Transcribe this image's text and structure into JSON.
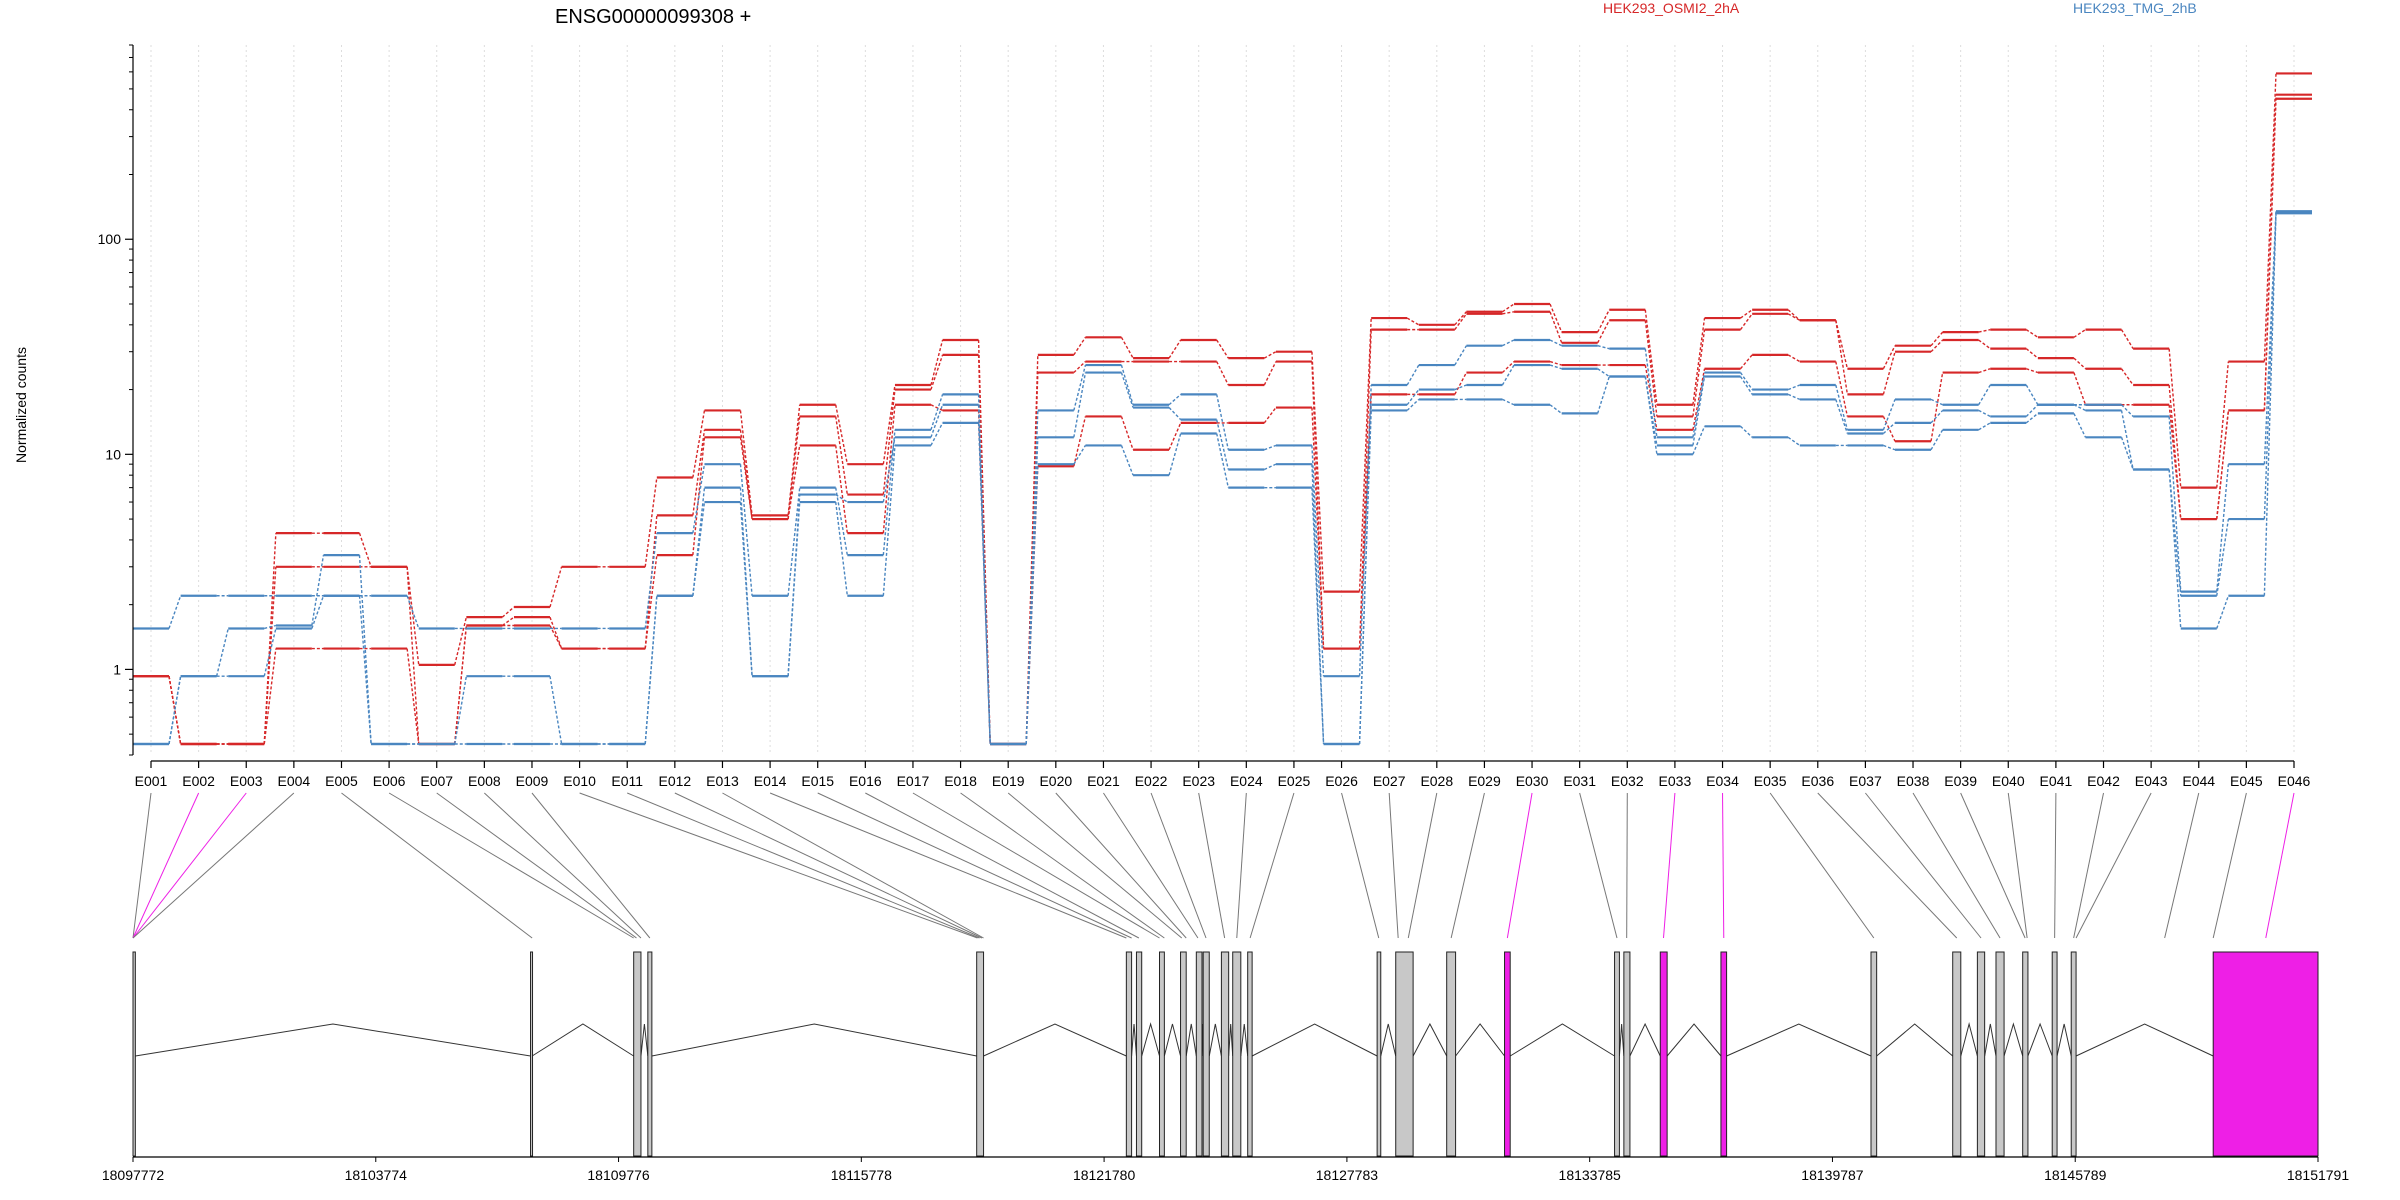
{
  "title": "ENSG00000099308 +",
  "ylabel": "Normalized counts",
  "legend": [
    {
      "name": "HEK293_OSMI2_2hA",
      "color": "#d62728"
    },
    {
      "name": "HEK293_TMG_2hB",
      "color": "#4a86c0"
    }
  ],
  "chart_data": {
    "type": "line",
    "y_scale": "log",
    "ylim": [
      0.4,
      800
    ],
    "y_ticks": [
      1,
      10,
      100
    ],
    "y_tick_labels": [
      "1",
      "10",
      "100"
    ],
    "grid": "vertical dotted per exon",
    "legend_position": "top",
    "exons": [
      "E001",
      "E002",
      "E003",
      "E004",
      "E005",
      "E006",
      "E007",
      "E008",
      "E009",
      "E010",
      "E011",
      "E012",
      "E013",
      "E014",
      "E015",
      "E016",
      "E017",
      "E018",
      "E019",
      "E020",
      "E021",
      "E022",
      "E023",
      "E024",
      "E025",
      "E026",
      "E027",
      "E028",
      "E029",
      "E030",
      "E031",
      "E032",
      "E033",
      "E034",
      "E035",
      "E036",
      "E037",
      "E038",
      "E039",
      "E040",
      "E041",
      "E042",
      "E043",
      "E044",
      "E045",
      "E046"
    ],
    "series": [
      {
        "group": "HEK293_OSMI2_2hA",
        "values": [
          0.93,
          0.45,
          0.45,
          4.3,
          4.3,
          3.0,
          1.05,
          1.75,
          1.95,
          3.0,
          3.0,
          7.8,
          16.0,
          5.2,
          17.0,
          9.0,
          21.0,
          34.0,
          0.45,
          29.0,
          35.0,
          28.0,
          34.0,
          28.0,
          30.0,
          2.3,
          43.0,
          40.0,
          46.0,
          50.0,
          37.0,
          47.0,
          17.0,
          43.0,
          47.0,
          42.0,
          25.0,
          32.0,
          37.0,
          38.0,
          35.0,
          38.0,
          31.0,
          7.0,
          27.0,
          590
        ]
      },
      {
        "group": "HEK293_OSMI2_2hA",
        "values": [
          0.93,
          0.45,
          0.45,
          3.0,
          3.0,
          3.0,
          0.45,
          1.6,
          1.75,
          1.25,
          1.25,
          5.2,
          13.0,
          5.0,
          15.0,
          6.5,
          20.0,
          29.0,
          0.45,
          24.0,
          27.0,
          27.0,
          27.0,
          21.0,
          27.0,
          1.25,
          38.0,
          38.0,
          45.0,
          46.0,
          33.0,
          42.0,
          15.0,
          38.0,
          45.0,
          42.0,
          19.0,
          30.0,
          34.0,
          31.0,
          28.0,
          25.0,
          21.0,
          5.0,
          16.0,
          470
        ]
      },
      {
        "group": "HEK293_OSMI2_2hA",
        "values": [
          0.93,
          0.45,
          0.45,
          1.25,
          1.25,
          1.25,
          0.45,
          1.6,
          1.6,
          1.25,
          1.25,
          3.4,
          12.0,
          5.0,
          11.0,
          4.3,
          17.0,
          16.0,
          0.45,
          8.8,
          15.0,
          10.5,
          14.0,
          14.0,
          16.5,
          1.25,
          19.0,
          19.0,
          24.0,
          27.0,
          26.0,
          26.0,
          13.0,
          25.0,
          29.0,
          27.0,
          15.0,
          11.5,
          24.0,
          25.0,
          24.0,
          17.0,
          17.0,
          5.0,
          16.0,
          450
        ]
      },
      {
        "group": "HEK293_TMG_2hB",
        "values": [
          1.55,
          2.2,
          2.2,
          2.2,
          2.2,
          2.2,
          1.55,
          1.55,
          1.55,
          1.55,
          1.55,
          4.3,
          9.0,
          2.2,
          7.0,
          3.4,
          13.0,
          19.0,
          0.45,
          16.0,
          26.0,
          17.0,
          19.0,
          10.5,
          11.0,
          0.93,
          21.0,
          26.0,
          32.0,
          34.0,
          32.0,
          31.0,
          12.0,
          24.0,
          20.0,
          21.0,
          13.0,
          18.0,
          17.0,
          21.0,
          17.0,
          17.0,
          15.0,
          2.3,
          9.0,
          135
        ]
      },
      {
        "group": "HEK293_TMG_2hB",
        "values": [
          0.45,
          0.93,
          1.55,
          1.6,
          3.4,
          0.45,
          0.45,
          0.93,
          0.93,
          0.45,
          0.45,
          2.2,
          7.0,
          0.93,
          6.5,
          6.0,
          12.0,
          17.0,
          0.45,
          12.0,
          24.0,
          16.5,
          14.5,
          8.5,
          9.0,
          0.45,
          17.0,
          20.0,
          21.0,
          26.0,
          25.0,
          23.0,
          11.0,
          23.0,
          19.0,
          18.0,
          12.5,
          14.0,
          16.0,
          15.0,
          17.0,
          16.0,
          8.5,
          2.2,
          5.0,
          133
        ]
      },
      {
        "group": "HEK293_TMG_2hB",
        "values": [
          0.45,
          0.93,
          0.93,
          1.55,
          2.2,
          0.45,
          0.45,
          0.45,
          0.45,
          0.45,
          0.45,
          2.2,
          6.0,
          0.93,
          6.0,
          2.2,
          11.0,
          14.0,
          0.45,
          9.0,
          11.0,
          8.0,
          12.5,
          7.0,
          7.0,
          0.45,
          16.0,
          18.0,
          18.0,
          17.0,
          15.5,
          23.0,
          10.0,
          13.5,
          12.0,
          11.0,
          11.0,
          10.5,
          13.0,
          14.0,
          15.5,
          12.0,
          8.5,
          1.55,
          2.2,
          132
        ]
      }
    ]
  },
  "gene_model": {
    "axis_min": 18097772,
    "axis_max": 18151791,
    "x_ticks": [
      18097772,
      18103774,
      18109776,
      18115778,
      18121780,
      18127783,
      18133785,
      18139787,
      18145789,
      18151791
    ],
    "x_tick_labels": [
      "18097772",
      "18103774",
      "18109776",
      "18115778",
      "18121780",
      "18127783",
      "18133785",
      "18139787",
      "18145789",
      "18151791"
    ],
    "exons": [
      {
        "start": 18097772,
        "end": 18097830,
        "highlight": false
      },
      {
        "start": 18107600,
        "end": 18107640,
        "highlight": false
      },
      {
        "start": 18110150,
        "end": 18110330,
        "highlight": false
      },
      {
        "start": 18110500,
        "end": 18110600,
        "highlight": false
      },
      {
        "start": 18118630,
        "end": 18118800,
        "highlight": false
      },
      {
        "start": 18122330,
        "end": 18122460,
        "highlight": false
      },
      {
        "start": 18122580,
        "end": 18122710,
        "highlight": false
      },
      {
        "start": 18123150,
        "end": 18123270,
        "highlight": false
      },
      {
        "start": 18123670,
        "end": 18123810,
        "highlight": false
      },
      {
        "start": 18124060,
        "end": 18124200,
        "highlight": false
      },
      {
        "start": 18124230,
        "end": 18124380,
        "highlight": false
      },
      {
        "start": 18124680,
        "end": 18124860,
        "highlight": false
      },
      {
        "start": 18124960,
        "end": 18125160,
        "highlight": false
      },
      {
        "start": 18125330,
        "end": 18125440,
        "highlight": false
      },
      {
        "start": 18128530,
        "end": 18128620,
        "highlight": false
      },
      {
        "start": 18128990,
        "end": 18129420,
        "highlight": false
      },
      {
        "start": 18130250,
        "end": 18130470,
        "highlight": false
      },
      {
        "start": 18131680,
        "end": 18131820,
        "highlight": true
      },
      {
        "start": 18134400,
        "end": 18134520,
        "highlight": false
      },
      {
        "start": 18134630,
        "end": 18134780,
        "highlight": false
      },
      {
        "start": 18135530,
        "end": 18135700,
        "highlight": true
      },
      {
        "start": 18137030,
        "end": 18137170,
        "highlight": true
      },
      {
        "start": 18140740,
        "end": 18140880,
        "highlight": false
      },
      {
        "start": 18142760,
        "end": 18142960,
        "highlight": false
      },
      {
        "start": 18143370,
        "end": 18143550,
        "highlight": false
      },
      {
        "start": 18143830,
        "end": 18144030,
        "highlight": false
      },
      {
        "start": 18144490,
        "end": 18144620,
        "highlight": false
      },
      {
        "start": 18145220,
        "end": 18145340,
        "highlight": false
      },
      {
        "start": 18145690,
        "end": 18145810,
        "highlight": false
      },
      {
        "start": 18149200,
        "end": 18151791,
        "highlight": true
      }
    ],
    "connectors": [
      {
        "exon": 0,
        "target": 18097772,
        "highlight": false
      },
      {
        "exon": 1,
        "target": 18097772,
        "highlight": true
      },
      {
        "exon": 2,
        "target": 18097772,
        "highlight": true
      },
      {
        "exon": 3,
        "target": 18097772,
        "highlight": false
      },
      {
        "exon": 4,
        "target": 18107640,
        "highlight": false
      },
      {
        "exon": 5,
        "target": 18110150,
        "highlight": false
      },
      {
        "exon": 6,
        "target": 18110220,
        "highlight": false
      },
      {
        "exon": 7,
        "target": 18110330,
        "highlight": false
      },
      {
        "exon": 8,
        "target": 18110550,
        "highlight": false
      },
      {
        "exon": 9,
        "target": 18118650,
        "highlight": false
      },
      {
        "exon": 10,
        "target": 18118700,
        "highlight": false
      },
      {
        "exon": 11,
        "target": 18118760,
        "highlight": false
      },
      {
        "exon": 12,
        "target": 18118800,
        "highlight": false
      },
      {
        "exon": 13,
        "target": 18122330,
        "highlight": false
      },
      {
        "exon": 14,
        "target": 18122460,
        "highlight": false
      },
      {
        "exon": 15,
        "target": 18122640,
        "highlight": false
      },
      {
        "exon": 16,
        "target": 18123150,
        "highlight": false
      },
      {
        "exon": 17,
        "target": 18123270,
        "highlight": false
      },
      {
        "exon": 18,
        "target": 18123700,
        "highlight": false
      },
      {
        "exon": 19,
        "target": 18123810,
        "highlight": false
      },
      {
        "exon": 20,
        "target": 18124100,
        "highlight": false
      },
      {
        "exon": 21,
        "target": 18124300,
        "highlight": false
      },
      {
        "exon": 22,
        "target": 18124760,
        "highlight": false
      },
      {
        "exon": 23,
        "target": 18125060,
        "highlight": false
      },
      {
        "exon": 24,
        "target": 18125390,
        "highlight": false
      },
      {
        "exon": 25,
        "target": 18128570,
        "highlight": false
      },
      {
        "exon": 26,
        "target": 18129050,
        "highlight": false
      },
      {
        "exon": 27,
        "target": 18129300,
        "highlight": false
      },
      {
        "exon": 28,
        "target": 18130360,
        "highlight": false
      },
      {
        "exon": 29,
        "target": 18131750,
        "highlight": true
      },
      {
        "exon": 30,
        "target": 18134460,
        "highlight": false
      },
      {
        "exon": 31,
        "target": 18134700,
        "highlight": false
      },
      {
        "exon": 32,
        "target": 18135610,
        "highlight": true
      },
      {
        "exon": 33,
        "target": 18137100,
        "highlight": true
      },
      {
        "exon": 34,
        "target": 18140810,
        "highlight": false
      },
      {
        "exon": 35,
        "target": 18142860,
        "highlight": false
      },
      {
        "exon": 36,
        "target": 18143460,
        "highlight": false
      },
      {
        "exon": 37,
        "target": 18143930,
        "highlight": false
      },
      {
        "exon": 38,
        "target": 18144550,
        "highlight": false
      },
      {
        "exon": 39,
        "target": 18144600,
        "highlight": false
      },
      {
        "exon": 40,
        "target": 18145280,
        "highlight": false
      },
      {
        "exon": 41,
        "target": 18145750,
        "highlight": false
      },
      {
        "exon": 42,
        "target": 18145810,
        "highlight": false
      },
      {
        "exon": 43,
        "target": 18148000,
        "highlight": false
      },
      {
        "exon": 44,
        "target": 18149200,
        "highlight": false
      },
      {
        "exon": 45,
        "target": 18150500,
        "highlight": true
      }
    ]
  },
  "colors": {
    "osmi": "#d62728",
    "tmg": "#4a86c0",
    "highlight": "#ee1fe6",
    "exon_fill": "#c8c8c8",
    "grid": "#dddddd"
  }
}
